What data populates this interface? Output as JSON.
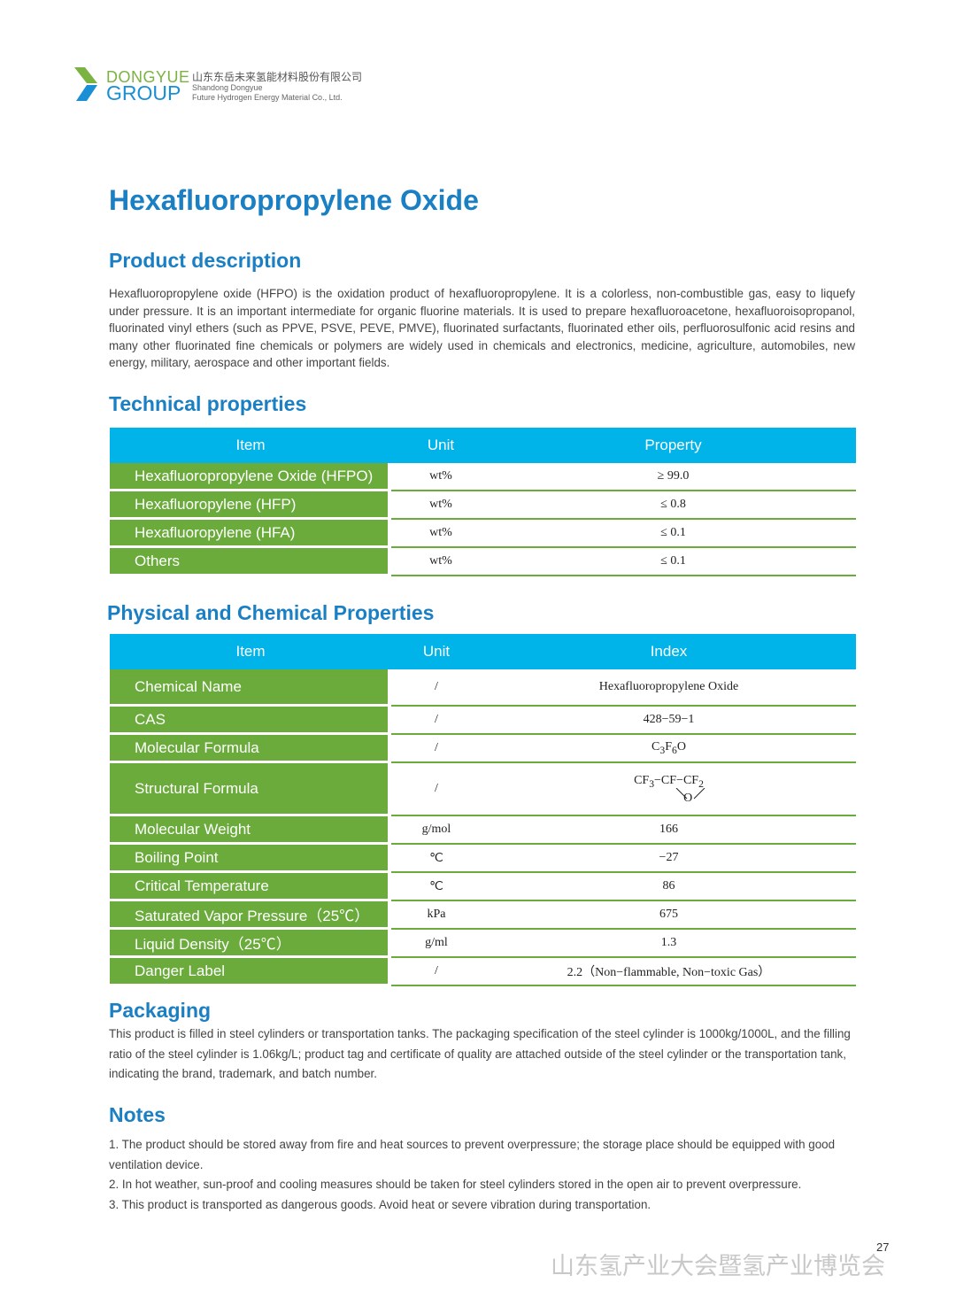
{
  "header": {
    "brand_line1": "DONGYUE",
    "brand_line2": "GROUP",
    "company_cn": "山东东岳未来氢能材料股份有限公司",
    "company_en_line1": "Shandong Dongyue",
    "company_en_line2": "Future Hydrogen Energy Material Co., Ltd."
  },
  "title": "Hexafluoropropylene Oxide",
  "description": {
    "heading": "Product description",
    "text": "Hexafluoropropylene oxide (HFPO) is the oxidation product of hexafluoropropylene. It is a colorless, non-combustible gas, easy to liquefy under pressure. It is an important intermediate for organic fluorine materials. It is used to prepare hexafluoroacetone, hexafluoroisopropanol, fluorinated vinyl ethers (such as PPVE, PSVE, PEVE, PMVE), fluorinated surfactants, fluorinated ether oils, perfluorosulfonic acid resins and many other fluorinated fine chemicals or polymers are widely used in chemicals and electronics, medicine, agriculture, automobiles, new energy, military, aerospace and other important fields."
  },
  "technical": {
    "heading": "Technical properties",
    "columns": [
      "Item",
      "Unit",
      "Property"
    ],
    "rows": [
      [
        "Hexafluoropropylene Oxide (HFPO)",
        "wt%",
        "≥ 99.0"
      ],
      [
        "Hexafluoropylene (HFP)",
        "wt%",
        "≤ 0.8"
      ],
      [
        "Hexafluoropylene (HFA)",
        "wt%",
        "≤ 0.1"
      ],
      [
        "Others",
        "wt%",
        "≤ 0.1"
      ]
    ]
  },
  "physical": {
    "heading": "Physical and Chemical Properties",
    "columns": [
      "Item",
      "Unit",
      "Index"
    ],
    "rows": [
      [
        "Chemical Name",
        "/",
        "Hexafluoropropylene Oxide"
      ],
      [
        "CAS",
        "/",
        "428−59−1"
      ],
      [
        "Molecular Formula",
        "/",
        ""
      ],
      [
        "Structural Formula",
        "/",
        ""
      ],
      [
        "Molecular Weight",
        "g/mol",
        "166"
      ],
      [
        "Boiling Point",
        "℃",
        "−27"
      ],
      [
        "Critical Temperature",
        "℃",
        "86"
      ],
      [
        "Saturated Vapor Pressure（25℃）",
        "kPa",
        "675"
      ],
      [
        "Liquid Density（25℃）",
        "g/ml",
        "1.3"
      ],
      [
        "Danger Label",
        "/",
        "2.2（Non−flammable, Non−toxic Gas）"
      ]
    ],
    "molecular_formula": {
      "c": "C",
      "c_n": "3",
      "f": "F",
      "f_n": "6",
      "o": "O"
    },
    "structural_formula": {
      "a": "CF",
      "a_n": "3",
      "b": "−CF−",
      "c": "CF",
      "c_n": "2",
      "dash": "−",
      "bridge": "O"
    }
  },
  "packaging": {
    "heading": "Packaging",
    "text": "This product is filled in steel cylinders or transportation tanks. The packaging specification of the steel cylinder is 1000kg/1000L, and the filling ratio of the steel cylinder is 1.06kg/L; product tag and certificate of quality are attached outside of the steel cylinder or the transportation tank, indicating the brand, trademark, and batch number."
  },
  "notes": {
    "heading": "Notes",
    "items": [
      "1. The product should be stored away from fire and heat sources to prevent overpressure; the storage place should be equipped with good ventilation device.",
      "2. In hot weather, sun-proof and cooling measures should be taken for steel cylinders stored in the open air to prevent overpressure.",
      "3. This product is transported as dangerous goods. Avoid heat or severe vibration during transportation."
    ]
  },
  "page_number": "27",
  "watermark": "山东氢产业大会暨氢产业博览会"
}
